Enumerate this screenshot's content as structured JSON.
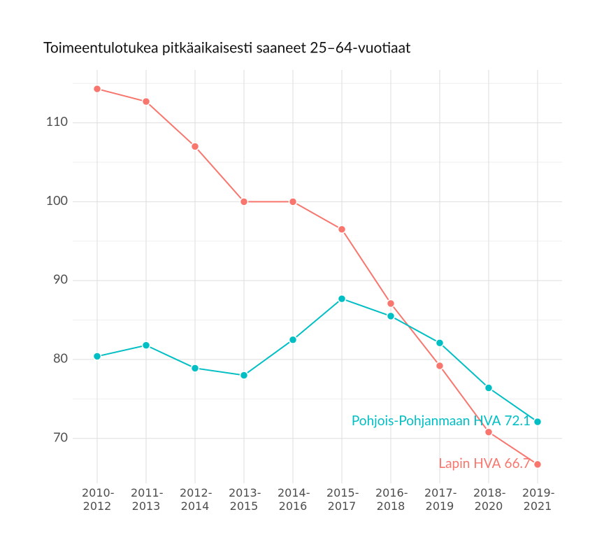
{
  "chart_data": {
    "type": "line",
    "title": "Toimeentulotukea pitkäaikaisesti saaneet 25–64-vuotiaat",
    "categories": [
      "2010-2012",
      "2011-2013",
      "2012-2014",
      "2013-2015",
      "2014-2016",
      "2015-2017",
      "2016-2018",
      "2017-2019",
      "2018-2020",
      "2019-2021"
    ],
    "series": [
      {
        "name": "Lapin HVA",
        "color": "#F8766D",
        "values": [
          114.3,
          112.7,
          107.0,
          100.0,
          100.0,
          96.5,
          87.1,
          79.2,
          70.8,
          66.7
        ]
      },
      {
        "name": "Pohjois-Pohjanmaan HVA",
        "color": "#00BFC4",
        "values": [
          80.4,
          81.8,
          78.9,
          78.0,
          82.5,
          87.7,
          85.5,
          82.1,
          76.4,
          72.1
        ]
      }
    ],
    "ylim": [
      64.3,
      116.7
    ],
    "yticks": [
      70,
      80,
      90,
      100,
      110
    ],
    "minor_yticks": [
      75,
      85,
      95,
      105,
      115
    ],
    "grid": true
  }
}
